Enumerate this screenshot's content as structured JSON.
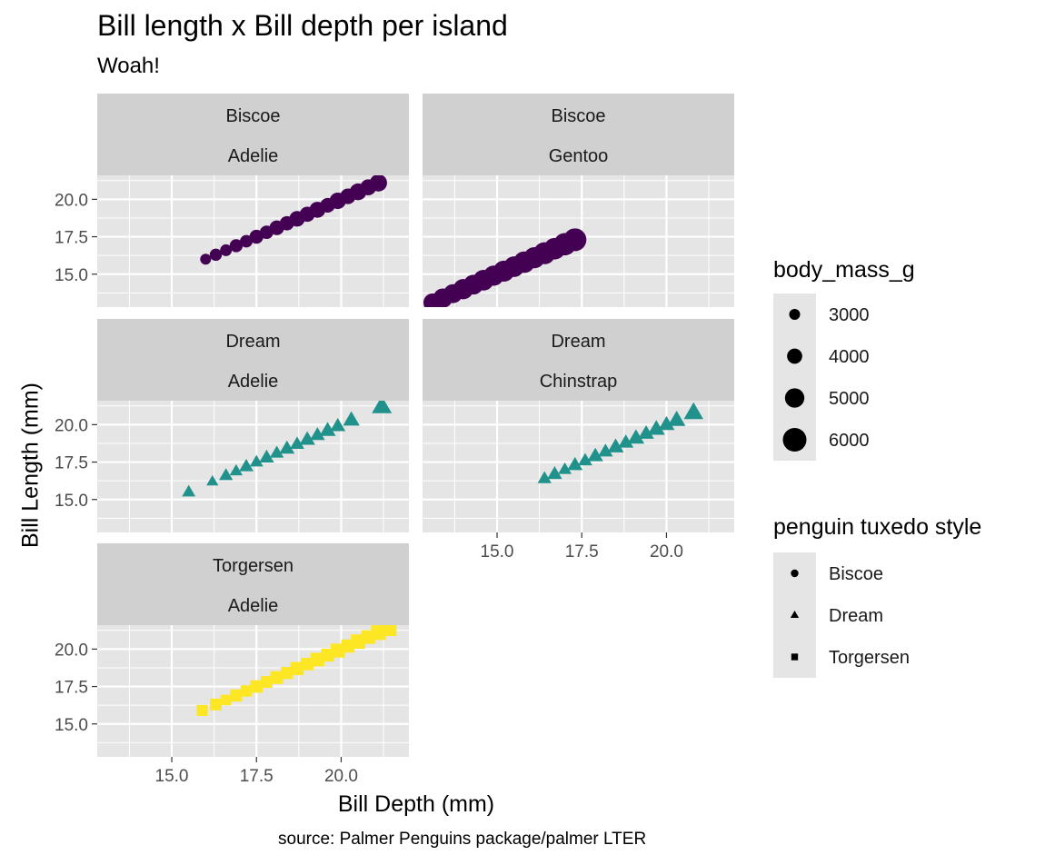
{
  "title": "Bill length x Bill depth per island",
  "subtitle": "Woah!",
  "caption": "source: Palmer Penguins package/palmer LTER",
  "colors": {
    "panel_bg": "#E5E5E5",
    "strip_bg": "#D0D0D0",
    "grid": "#FFFFFF",
    "biscoe": "#440154",
    "dream": "#21918C",
    "torgersen": "#FDE725"
  },
  "chart_data": {
    "type": "scatter",
    "title": "Bill length x Bill depth per island",
    "subtitle": "Woah!",
    "caption": "source: Palmer Penguins package/palmer LTER",
    "xlabel": "Bill Depth (mm)",
    "ylabel": "Bill Length (mm)",
    "xlim": [
      12.8,
      22.0
    ],
    "ylim": [
      12.8,
      21.6
    ],
    "x_ticks": [
      "15.0",
      "17.5",
      "20.0"
    ],
    "y_ticks": [
      "15.0",
      "17.5",
      "20.0"
    ],
    "grid": true,
    "legend_position": "right",
    "facet_cols": 2,
    "panels": [
      {
        "island": "Biscoe",
        "species": "Adelie",
        "color": "#440154",
        "shape": "circle",
        "x": [
          16.0,
          16.3,
          16.6,
          16.9,
          17.2,
          17.5,
          17.8,
          18.1,
          18.4,
          18.7,
          19.0,
          19.3,
          19.6,
          19.9,
          20.2,
          20.5,
          20.8,
          21.1
        ],
        "y": [
          16.0,
          16.3,
          16.6,
          16.9,
          17.2,
          17.5,
          17.8,
          18.1,
          18.4,
          18.7,
          19.0,
          19.3,
          19.6,
          19.9,
          20.2,
          20.5,
          20.8,
          21.1
        ],
        "body_mass_g": [
          3000,
          3300,
          3200,
          3500,
          3400,
          3700,
          3600,
          3900,
          3800,
          4100,
          4000,
          4200,
          3900,
          4300,
          4100,
          4400,
          4200,
          4500
        ]
      },
      {
        "island": "Biscoe",
        "species": "Gentoo",
        "color": "#440154",
        "shape": "circle",
        "x": [
          13.1,
          13.4,
          13.7,
          14.0,
          14.3,
          14.6,
          14.9,
          15.2,
          15.5,
          15.8,
          16.1,
          16.4,
          16.7,
          17.0,
          17.3
        ],
        "y": [
          13.1,
          13.4,
          13.7,
          14.0,
          14.3,
          14.6,
          14.9,
          15.2,
          15.5,
          15.8,
          16.1,
          16.4,
          16.7,
          17.0,
          17.3
        ],
        "body_mass_g": [
          4800,
          5000,
          4900,
          5200,
          5100,
          5300,
          5200,
          5400,
          5300,
          5500,
          5400,
          5600,
          5500,
          5700,
          5800
        ]
      },
      {
        "island": "Dream",
        "species": "Adelie",
        "color": "#21918C",
        "shape": "triangle",
        "x": [
          15.5,
          16.2,
          16.6,
          16.9,
          17.2,
          17.5,
          17.8,
          18.1,
          18.4,
          18.7,
          19.0,
          19.3,
          19.6,
          19.9,
          20.3,
          21.2
        ],
        "y": [
          15.5,
          16.2,
          16.6,
          16.9,
          17.2,
          17.5,
          17.8,
          18.1,
          18.4,
          18.7,
          19.0,
          19.3,
          19.6,
          19.9,
          20.3,
          21.2
        ],
        "body_mass_g": [
          3300,
          3000,
          3400,
          3200,
          3500,
          3300,
          3600,
          3400,
          3700,
          3500,
          3800,
          3600,
          3900,
          3700,
          4000,
          4700
        ]
      },
      {
        "island": "Dream",
        "species": "Chinstrap",
        "color": "#21918C",
        "shape": "triangle",
        "x": [
          16.4,
          16.7,
          17.0,
          17.3,
          17.6,
          17.9,
          18.2,
          18.5,
          18.8,
          19.1,
          19.4,
          19.7,
          20.0,
          20.3,
          20.8
        ],
        "y": [
          16.4,
          16.7,
          17.0,
          17.3,
          17.6,
          17.9,
          18.2,
          18.5,
          18.8,
          19.1,
          19.4,
          19.7,
          20.0,
          20.3,
          20.8
        ],
        "body_mass_g": [
          3400,
          3600,
          3300,
          3700,
          3500,
          3800,
          3600,
          3900,
          3700,
          4000,
          3800,
          4100,
          3900,
          4200,
          4600
        ]
      },
      {
        "island": "Torgersen",
        "species": "Adelie",
        "color": "#FDE725",
        "shape": "square",
        "x": [
          15.9,
          16.3,
          16.6,
          16.9,
          17.2,
          17.5,
          17.8,
          18.1,
          18.4,
          18.7,
          19.0,
          19.3,
          19.6,
          19.9,
          20.2,
          20.5,
          20.8,
          21.1,
          21.4
        ],
        "y": [
          15.9,
          16.3,
          16.6,
          16.9,
          17.2,
          17.5,
          17.8,
          18.1,
          18.4,
          18.7,
          19.0,
          19.3,
          19.6,
          19.9,
          20.2,
          20.5,
          20.8,
          21.1,
          21.4
        ],
        "body_mass_g": [
          3400,
          3600,
          3300,
          3700,
          3500,
          3800,
          3600,
          3900,
          3700,
          4000,
          3800,
          4100,
          3900,
          4200,
          4000,
          4300,
          4100,
          4400,
          4700
        ]
      }
    ],
    "size_legend": {
      "title": "body_mass_g",
      "values": [
        3000,
        4000,
        5000,
        6000
      ]
    },
    "shape_legend": {
      "title": "penguin tuxedo style",
      "entries": [
        {
          "label": "Biscoe",
          "shape": "circle"
        },
        {
          "label": "Dream",
          "shape": "triangle"
        },
        {
          "label": "Torgersen",
          "shape": "square"
        }
      ]
    }
  }
}
